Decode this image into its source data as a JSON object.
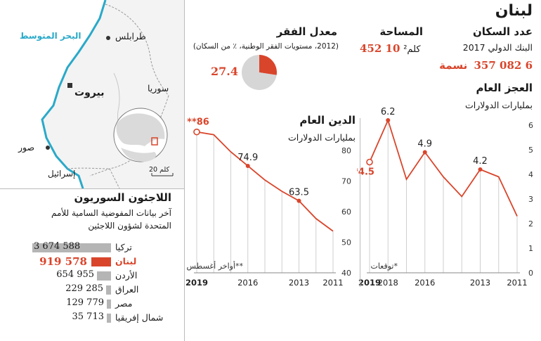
{
  "header": {
    "country": "لبنان",
    "population_label": "عدد السكان",
    "population_source": "البنك الدولي 2017",
    "population_value": "6 082 357",
    "population_unit": "نسمة",
    "area_label": "المساحة",
    "area_value": "10 452",
    "area_unit": "كلم²",
    "poverty_label": "معدل الفقر",
    "poverty_sub": "(2012، مستويات الفقر الوطنية، ٪ من السكان)",
    "poverty_value": "27.4"
  },
  "map": {
    "sea_label": "البحر المتوسط",
    "cities": [
      "طرابلس",
      "بيروت",
      "صور"
    ],
    "syria_label": "سوريا",
    "israel_label": "إسرائيل",
    "scale_label": "20 كلم",
    "colors": {
      "sea": "#ffffff",
      "land": "#f3f3f3",
      "coast": "#2aa9c9",
      "accent": "#d9452b"
    }
  },
  "refugees": {
    "title": "اللاجئون السوريون",
    "subtitle_line1": "آخر بيانات المفوضية السامية للأمم",
    "subtitle_line2": "المتحدة لشؤون اللاجئين",
    "items": [
      {
        "country": "تركيا",
        "value": 3674588,
        "label": "3 674 588",
        "highlight": false
      },
      {
        "country": "لبنان",
        "value": 919578,
        "label": "919 578",
        "highlight": true
      },
      {
        "country": "الأردن",
        "value": 654955,
        "label": "654 955",
        "highlight": false
      },
      {
        "country": "العراق",
        "value": 229285,
        "label": "229 285",
        "highlight": false
      },
      {
        "country": "مصر",
        "value": 129779,
        "label": "129 779",
        "highlight": false
      },
      {
        "country": "شمال إفريقيا",
        "value": 35713,
        "label": "35 713",
        "highlight": false
      }
    ]
  },
  "chart_data": [
    {
      "type": "pie",
      "slices": [
        {
          "label": "27.4",
          "value": 27.4,
          "color": "#d9452b"
        },
        {
          "label": "",
          "value": 72.6,
          "color": "#d6d6d6"
        }
      ]
    },
    {
      "type": "line",
      "title": "الدين العام",
      "ylabel": "بمليارات الدولارات",
      "x": [
        2011,
        2012,
        2013,
        2014,
        2015,
        2016,
        2017,
        2018,
        2019
      ],
      "series": [
        {
          "values": [
            53.6,
            57.7,
            63.5,
            66.6,
            70.3,
            74.9,
            79.5,
            85.1,
            86
          ]
        }
      ],
      "projected_point": {
        "x": 2019,
        "y": 86,
        "label": "**86"
      },
      "point_labels": [
        {
          "x": 2013,
          "label": "63.5"
        },
        {
          "x": 2016,
          "label": "74.9"
        }
      ],
      "ylim": [
        40,
        85
      ],
      "yticks": [
        40,
        50,
        60,
        70,
        80
      ],
      "xticks": [
        {
          "x": 2011,
          "label": "2011"
        },
        {
          "x": 2013,
          "label": "2013"
        },
        {
          "x": 2016,
          "label": "2016"
        },
        {
          "x": 2019,
          "label": "2019"
        }
      ],
      "footnote": "**أواخر أغسطس"
    },
    {
      "type": "line",
      "title": "العجز العام",
      "ylabel": "بمليارات الدولارات",
      "x": [
        2011,
        2012,
        2013,
        2014,
        2015,
        2016,
        2017,
        2018,
        2019
      ],
      "series": [
        {
          "values": [
            2.3,
            3.9,
            4.2,
            3.1,
            3.9,
            4.9,
            3.8,
            6.2,
            4.5
          ]
        }
      ],
      "projected_point": {
        "x": 2019,
        "y": 4.5,
        "label": "*4.5"
      },
      "point_labels": [
        {
          "x": 2013,
          "label": "4.2"
        },
        {
          "x": 2016,
          "label": "4.9"
        },
        {
          "x": 2018,
          "label": "6.2"
        }
      ],
      "ylim": [
        0,
        6.4
      ],
      "yticks": [
        0,
        1,
        2,
        3,
        4,
        5,
        6
      ],
      "xticks": [
        {
          "x": 2011,
          "label": "2011"
        },
        {
          "x": 2013,
          "label": "2013"
        },
        {
          "x": 2016,
          "label": "2016"
        },
        {
          "x": 2018,
          "label": "2018"
        },
        {
          "x": 2019,
          "label": "2019"
        }
      ],
      "footnote": "*توقعات"
    }
  ]
}
